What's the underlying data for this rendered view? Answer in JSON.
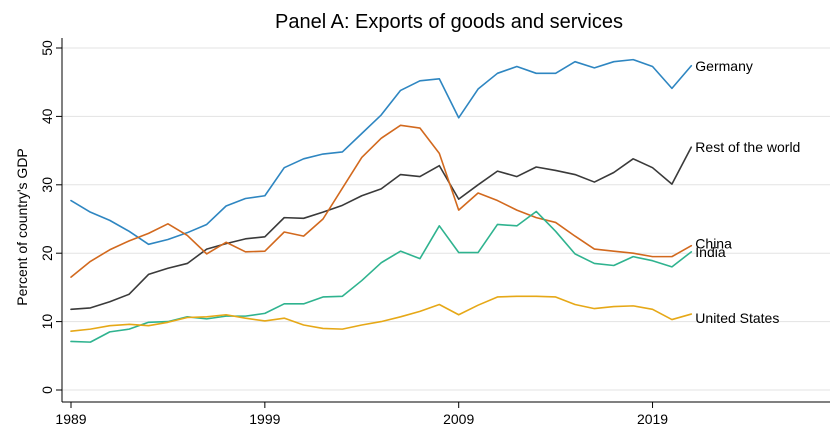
{
  "chart_data": {
    "type": "line",
    "title": "Panel A: Exports of goods and services",
    "xlabel": "",
    "ylabel": "Percent of country's GDP",
    "xlim": [
      1989,
      2028
    ],
    "ylim": [
      0,
      50
    ],
    "xticks": [
      1989,
      1999,
      2009,
      2019
    ],
    "yticks": [
      0,
      10,
      20,
      30,
      40,
      50
    ],
    "grid": "horizontal",
    "legend": "inline labels at right end of lines",
    "x": [
      1989,
      1990,
      1991,
      1992,
      1993,
      1994,
      1995,
      1996,
      1997,
      1998,
      1999,
      2000,
      2001,
      2002,
      2003,
      2004,
      2005,
      2006,
      2007,
      2008,
      2009,
      2010,
      2011,
      2012,
      2013,
      2014,
      2015,
      2016,
      2017,
      2018,
      2019,
      2020,
      2021
    ],
    "series": [
      {
        "name": "Germany",
        "color": "#2e86c1",
        "values": [
          27.7,
          26.0,
          24.8,
          23.2,
          21.3,
          22.0,
          23.0,
          24.2,
          26.9,
          28.0,
          28.4,
          32.5,
          33.8,
          34.5,
          34.8,
          37.5,
          40.2,
          43.8,
          45.2,
          45.5,
          39.8,
          44.0,
          46.3,
          47.3,
          46.3,
          46.3,
          48.0,
          47.1,
          48.0,
          48.3,
          47.3,
          44.1,
          47.4
        ]
      },
      {
        "name": "Rest of the world",
        "color": "#3a3a3a",
        "values": [
          11.8,
          12.0,
          12.9,
          14.0,
          16.9,
          17.8,
          18.5,
          20.6,
          21.4,
          22.1,
          22.4,
          25.2,
          25.1,
          26.0,
          27.0,
          28.4,
          29.4,
          31.5,
          31.2,
          32.8,
          27.9,
          30.0,
          32.0,
          31.2,
          32.6,
          32.1,
          31.5,
          30.4,
          31.8,
          33.8,
          32.5,
          30.1,
          35.5
        ]
      },
      {
        "name": "China",
        "color": "#d2691e",
        "values": [
          16.5,
          18.8,
          20.5,
          21.8,
          22.9,
          24.3,
          22.6,
          19.9,
          21.6,
          20.2,
          20.3,
          23.1,
          22.5,
          25.0,
          29.5,
          34.0,
          36.8,
          38.7,
          38.3,
          34.6,
          26.3,
          28.8,
          27.7,
          26.3,
          25.2,
          24.5,
          22.5,
          20.6,
          20.3,
          20.0,
          19.5,
          19.5,
          21.1
        ]
      },
      {
        "name": "India",
        "color": "#2fb38f",
        "values": [
          7.1,
          7.0,
          8.5,
          8.9,
          9.9,
          10.0,
          10.7,
          10.4,
          10.8,
          10.8,
          11.2,
          12.6,
          12.6,
          13.6,
          13.7,
          16.0,
          18.6,
          20.3,
          19.2,
          24.0,
          20.1,
          20.1,
          24.2,
          24.0,
          26.1,
          23.2,
          19.9,
          18.5,
          18.2,
          19.5,
          18.9,
          18.0,
          20.2
        ]
      },
      {
        "name": "United States",
        "color": "#e6a817",
        "values": [
          8.6,
          8.9,
          9.4,
          9.6,
          9.4,
          9.9,
          10.6,
          10.7,
          11.0,
          10.5,
          10.1,
          10.5,
          9.5,
          9.0,
          8.9,
          9.5,
          10.0,
          10.7,
          11.5,
          12.5,
          11.0,
          12.4,
          13.6,
          13.7,
          13.7,
          13.6,
          12.5,
          11.9,
          12.2,
          12.3,
          11.8,
          10.3,
          11.1
        ]
      }
    ]
  }
}
